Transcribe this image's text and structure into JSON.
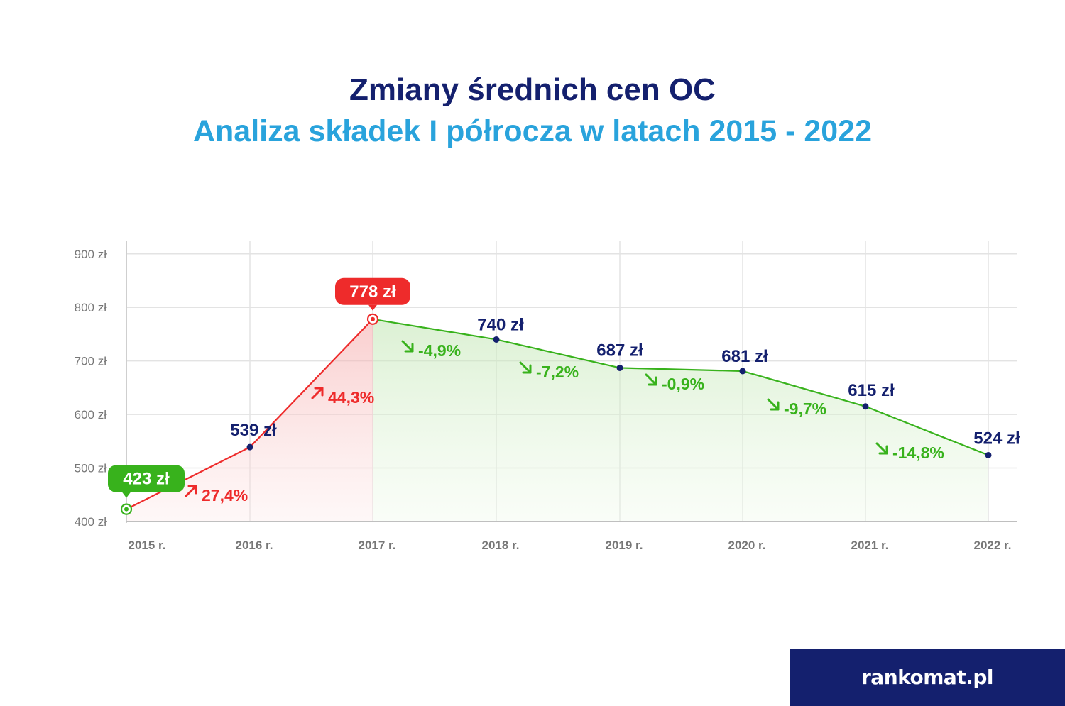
{
  "title": "Zmiany średnich cen OC",
  "subtitle": "Analiza składek I półrocza w latach 2015 - 2022",
  "brand": {
    "name": "rankomat.pl"
  },
  "colors": {
    "navy": "#14206e",
    "blue": "#29a3dc",
    "green": "#38b21c",
    "red": "#ee2b2b",
    "grid": "#e3e3e3",
    "tick": "#777777"
  },
  "chart_data": {
    "type": "line",
    "categories": [
      "2015 r.",
      "2016 r.",
      "2017 r.",
      "2018 r.",
      "2019 r.",
      "2020 r.",
      "2021 r.",
      "2022 r."
    ],
    "values": [
      423,
      539,
      778,
      740,
      687,
      681,
      615,
      524
    ],
    "value_labels": [
      "423 zł",
      "539 zł",
      "778 zł",
      "740 zł",
      "687 zł",
      "681 zł",
      "615 zł",
      "524 zł"
    ],
    "changes": [
      "27,4%",
      "44,3%",
      "-4,9%",
      "-7,2%",
      "-0,9%",
      "-9,7%",
      "-14,8%"
    ],
    "change_direction": [
      "up",
      "up",
      "down",
      "down",
      "down",
      "down",
      "down"
    ],
    "highlight_min": "423 zł",
    "highlight_max": "778 zł",
    "yticks": [
      "400 zł",
      "500 zł",
      "600 zł",
      "700 zł",
      "800 zł",
      "900 zł"
    ],
    "ytick_values": [
      400,
      500,
      600,
      700,
      800,
      900
    ],
    "ylim": [
      400,
      900
    ],
    "grid": true,
    "xlabel": "",
    "ylabel": ""
  }
}
